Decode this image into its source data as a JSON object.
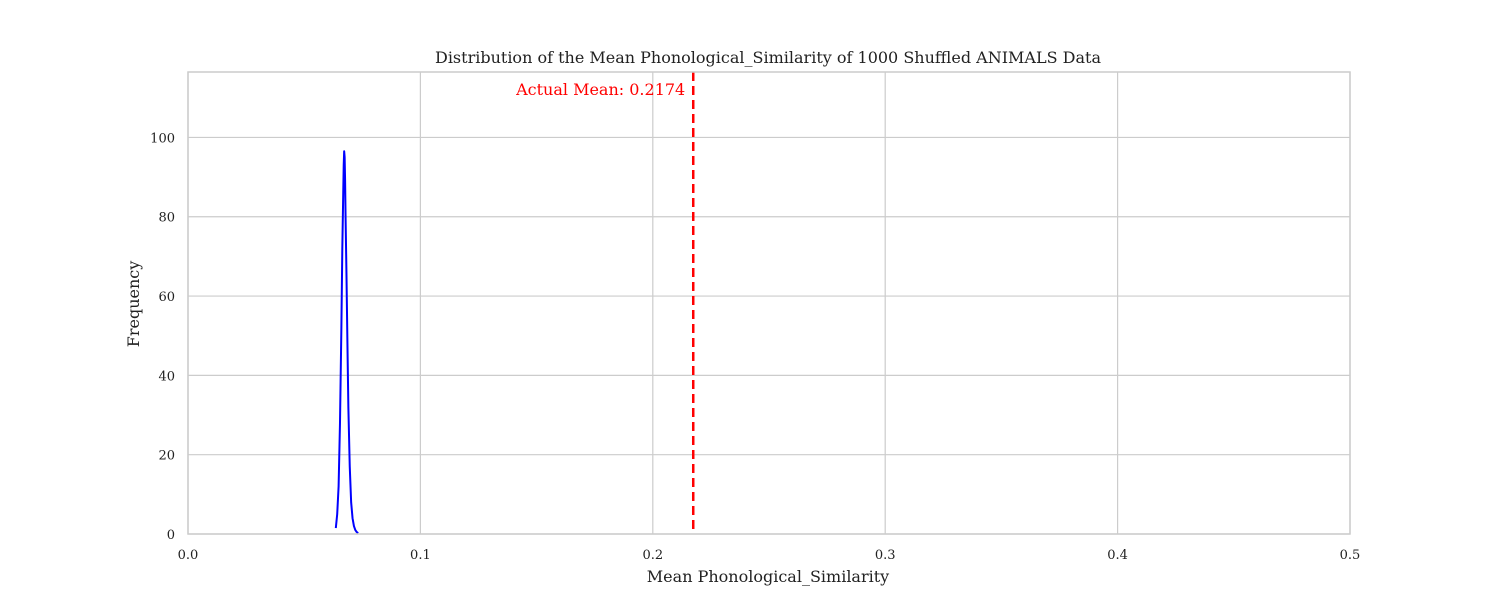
{
  "chart_data": {
    "type": "line",
    "title": "Distribution of the Mean Phonological_Similarity of 1000 Shuffled ANIMALS Data",
    "xlabel": "Mean Phonological_Similarity",
    "ylabel": "Frequency",
    "xlim": [
      0.0,
      0.5
    ],
    "ylim": [
      0,
      116.5
    ],
    "xticks": [
      0.0,
      0.1,
      0.2,
      0.3,
      0.4,
      0.5
    ],
    "xtick_labels": [
      "0.0",
      "0.1",
      "0.2",
      "0.3",
      "0.4",
      "0.5"
    ],
    "yticks": [
      0,
      20,
      40,
      60,
      80,
      100
    ],
    "ytick_labels": [
      "0",
      "20",
      "40",
      "60",
      "80",
      "100"
    ],
    "grid": true,
    "series": [
      {
        "color": "#0000ff",
        "x": [
          0.0636,
          0.0642,
          0.0648,
          0.0654,
          0.066,
          0.0664,
          0.0668,
          0.067,
          0.0672,
          0.0674,
          0.0676,
          0.0678,
          0.0682,
          0.0686,
          0.069,
          0.0696,
          0.0702,
          0.0708,
          0.0714,
          0.072,
          0.0726,
          0.0732
        ],
        "y": [
          1.5,
          5,
          12,
          28,
          52,
          72,
          86,
          93,
          96.5,
          95,
          89,
          80,
          65,
          48,
          32,
          17,
          8,
          4,
          2,
          1,
          0.5,
          0.2
        ]
      }
    ],
    "reference_line": {
      "x": 0.2174,
      "color": "#ff0000",
      "style": "dashed",
      "label": "Actual Mean: 0.2174"
    }
  }
}
